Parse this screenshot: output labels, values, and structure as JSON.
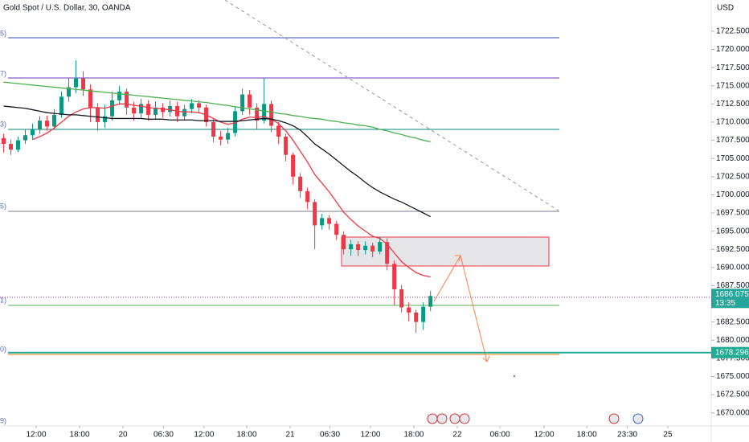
{
  "title": "Gold Spot / U.S. Dollar, 30, OANDA",
  "currency": "USD",
  "level_labels": [
    "5)",
    "7)",
    "3)",
    "5)",
    "1)",
    "0)",
    "9)"
  ],
  "chart_data": {
    "type": "candlestick",
    "xlim": [
      -0.5,
      97.8
    ],
    "ylim": [
      1668.2,
      1726.8
    ],
    "xticks": [
      {
        "value": 4.5,
        "label": "12:00"
      },
      {
        "value": 10.5,
        "label": "18:00"
      },
      {
        "value": 16.5,
        "label": "20"
      },
      {
        "value": 22.1,
        "label": "06:30"
      },
      {
        "value": 27.7,
        "label": "12:00"
      },
      {
        "value": 33.6,
        "label": "18:00"
      },
      {
        "value": 39.6,
        "label": "21"
      },
      {
        "value": 45.1,
        "label": "06:30"
      },
      {
        "value": 50.7,
        "label": "12:00"
      },
      {
        "value": 56.7,
        "label": "18:00"
      },
      {
        "value": 62.7,
        "label": "22"
      },
      {
        "value": 68.6,
        "label": "06:00"
      },
      {
        "value": 74.7,
        "label": "12:00"
      },
      {
        "value": 80.6,
        "label": "18:00"
      },
      {
        "value": 86.2,
        "label": "23:30"
      },
      {
        "value": 91.8,
        "label": "25"
      }
    ],
    "yticks": [
      {
        "value": 1722.5,
        "label": "1722.500"
      },
      {
        "value": 1720,
        "label": "1720.000"
      },
      {
        "value": 1717.5,
        "label": "1717.500"
      },
      {
        "value": 1715,
        "label": "1715.000"
      },
      {
        "value": 1712.5,
        "label": "1712.500"
      },
      {
        "value": 1710,
        "label": "1710.000"
      },
      {
        "value": 1707.5,
        "label": "1707.500"
      },
      {
        "value": 1705,
        "label": "1705.000"
      },
      {
        "value": 1702.5,
        "label": "1702.500"
      },
      {
        "value": 1700,
        "label": "1700.000"
      },
      {
        "value": 1697.5,
        "label": "1697.500"
      },
      {
        "value": 1695,
        "label": "1695.000"
      },
      {
        "value": 1692.5,
        "label": "1692.500"
      },
      {
        "value": 1690,
        "label": "1690.000"
      },
      {
        "value": 1687.5,
        "label": "1687.500"
      },
      {
        "value": 1682.5,
        "label": "1682.500"
      },
      {
        "value": 1680,
        "label": "1680.000"
      },
      {
        "value": 1677.5,
        "label": "1677.500"
      },
      {
        "value": 1675,
        "label": "1675.000"
      },
      {
        "value": 1672.5,
        "label": "1672.500"
      },
      {
        "value": 1670,
        "label": "1670.000"
      }
    ],
    "up_color": "#089981",
    "down_color": "#f23645",
    "open": [
      1707.8,
      1707.0,
      1706.2,
      1707.5,
      1708.2,
      1709.0,
      1710.2,
      1709.4,
      1711.0,
      1713.5,
      1714.8,
      1716.0,
      1714.5,
      1712.0,
      1710.0,
      1710.8,
      1713.0,
      1714.2,
      1712.0,
      1711.2,
      1712.5,
      1711.0,
      1712.0,
      1711.4,
      1712.2,
      1710.8,
      1711.8,
      1712.6,
      1712.0,
      1710.0,
      1708.0,
      1707.6,
      1708.5,
      1711.5,
      1713.8,
      1712.0,
      1710.2,
      1712.5,
      1709.5,
      1708.0,
      1705.5,
      1702.5,
      1700.5,
      1699.0,
      1695.8,
      1696.8,
      1696.0,
      1694.5,
      1692.5,
      1693.2,
      1692.4,
      1693.0,
      1692.2,
      1693.5,
      1690.5,
      1687.0,
      1684.5,
      1683.8,
      1682.5,
      1684.6
    ],
    "high": [
      1708.4,
      1707.6,
      1708.0,
      1709.0,
      1709.8,
      1710.8,
      1710.9,
      1711.8,
      1714.2,
      1716.0,
      1718.5,
      1717.0,
      1715.2,
      1712.6,
      1712.4,
      1714.2,
      1715.0,
      1714.6,
      1712.8,
      1713.2,
      1713.0,
      1712.8,
      1712.6,
      1713.0,
      1712.8,
      1712.4,
      1713.2,
      1713.0,
      1712.4,
      1710.4,
      1708.8,
      1709.2,
      1712.2,
      1714.6,
      1714.4,
      1712.6,
      1716.0,
      1713.0,
      1710.0,
      1708.4,
      1705.8,
      1703.0,
      1701.0,
      1699.4,
      1697.4,
      1697.2,
      1696.4,
      1695.0,
      1693.8,
      1693.6,
      1693.6,
      1693.4,
      1694.2,
      1694.0,
      1691.0,
      1687.6,
      1685.2,
      1684.2,
      1685.2,
      1686.8
    ],
    "low": [
      1705.8,
      1705.5,
      1705.9,
      1707.0,
      1707.6,
      1708.4,
      1708.8,
      1709.0,
      1710.6,
      1712.8,
      1714.0,
      1713.6,
      1710.0,
      1708.8,
      1709.2,
      1710.2,
      1712.4,
      1711.0,
      1710.2,
      1710.6,
      1710.2,
      1710.4,
      1710.6,
      1710.8,
      1710.0,
      1710.2,
      1711.2,
      1711.2,
      1709.4,
      1707.2,
      1706.8,
      1707.0,
      1708.0,
      1711.0,
      1711.0,
      1709.0,
      1709.8,
      1708.6,
      1707.0,
      1704.6,
      1701.4,
      1699.6,
      1698.0,
      1692.5,
      1695.2,
      1695.2,
      1693.8,
      1691.8,
      1691.6,
      1691.6,
      1691.8,
      1691.4,
      1691.8,
      1689.6,
      1684.8,
      1683.8,
      1682.6,
      1681.0,
      1681.4,
      1684.0
    ],
    "close": [
      1707.0,
      1706.2,
      1707.5,
      1708.2,
      1709.0,
      1710.2,
      1709.4,
      1711.0,
      1713.5,
      1714.8,
      1716.0,
      1714.5,
      1712.0,
      1710.0,
      1710.8,
      1713.0,
      1714.2,
      1712.0,
      1711.2,
      1712.5,
      1711.0,
      1712.0,
      1711.4,
      1712.2,
      1710.8,
      1711.8,
      1712.6,
      1712.0,
      1710.0,
      1708.0,
      1707.6,
      1708.5,
      1711.5,
      1713.8,
      1712.0,
      1710.2,
      1712.5,
      1709.5,
      1708.0,
      1705.5,
      1702.5,
      1700.5,
      1699.0,
      1695.8,
      1696.8,
      1696.0,
      1694.5,
      1692.5,
      1693.2,
      1692.4,
      1693.0,
      1692.2,
      1693.5,
      1690.5,
      1687.0,
      1684.5,
      1683.8,
      1682.5,
      1684.6,
      1686.075
    ],
    "lines": [
      {
        "color": "#f23645",
        "values": [
          null,
          null,
          null,
          null,
          1707.6,
          1708.0,
          1708.5,
          1709.2,
          1710.0,
          1710.8,
          1711.4,
          1711.8,
          1712.0,
          1712.0,
          1711.9,
          1712.2,
          1712.5,
          1712.5,
          1712.3,
          1712.2,
          1712.0,
          1711.9,
          1711.8,
          1711.7,
          1711.5,
          1711.4,
          1711.4,
          1711.3,
          1711.0,
          1710.5,
          1710.0,
          1709.7,
          1709.9,
          1710.4,
          1710.7,
          1710.6,
          1710.8,
          1710.4,
          1709.8,
          1708.8,
          1707.5,
          1706.0,
          1704.5,
          1702.8,
          1701.6,
          1700.4,
          1699.0,
          1697.6,
          1696.6,
          1695.7,
          1695.0,
          1694.3,
          1694.0,
          1693.2,
          1692.0,
          1690.8,
          1690.0,
          1689.3,
          1688.9,
          1688.7
        ]
      },
      {
        "color": "#131722",
        "values": [
          1712.2,
          1712.1,
          1712.0,
          1711.9,
          1711.7,
          1711.5,
          1711.3,
          1711.2,
          1711.1,
          1711.0,
          1711.0,
          1710.9,
          1710.8,
          1710.7,
          1710.6,
          1710.5,
          1710.5,
          1710.5,
          1710.5,
          1710.5,
          1710.4,
          1710.4,
          1710.4,
          1710.3,
          1710.3,
          1710.3,
          1710.3,
          1710.2,
          1710.2,
          1710.2,
          1710.1,
          1710.1,
          1710.1,
          1710.2,
          1710.3,
          1710.4,
          1710.5,
          1710.4,
          1710.2,
          1709.9,
          1709.5,
          1708.9,
          1708.0,
          1707.0,
          1706.3,
          1705.6,
          1704.8,
          1704.0,
          1703.2,
          1702.5,
          1701.7,
          1701.0,
          1700.4,
          1699.9,
          1699.4,
          1699.0,
          1698.5,
          1698.0,
          1697.5,
          1697.0
        ]
      },
      {
        "color": "#4caf50",
        "values": [
          1715.5,
          1715.4,
          1715.3,
          1715.2,
          1715.1,
          1715.0,
          1714.9,
          1714.8,
          1714.7,
          1714.6,
          1714.5,
          1714.4,
          1714.3,
          1714.2,
          1714.1,
          1714.0,
          1713.9,
          1713.8,
          1713.7,
          1713.6,
          1713.5,
          1713.4,
          1713.3,
          1713.2,
          1713.1,
          1713.0,
          1712.9,
          1712.8,
          1712.7,
          1712.55,
          1712.4,
          1712.3,
          1712.1,
          1712.0,
          1711.8,
          1711.7,
          1711.5,
          1711.4,
          1711.2,
          1711.1,
          1710.9,
          1710.8,
          1710.6,
          1710.5,
          1710.4,
          1710.2,
          1710.1,
          1709.9,
          1709.8,
          1709.6,
          1709.5,
          1709.3,
          1709.0,
          1708.8,
          1708.5,
          1708.3,
          1708.0,
          1707.8,
          1707.5,
          1707.3
        ]
      }
    ],
    "last_price": {
      "value": 1686.075,
      "label": "1686.075",
      "countdown": "13:35",
      "color": "#26a69a"
    },
    "level": {
      "value": 1678.296,
      "label": "1678.296",
      "color": "#22ab94"
    }
  }
}
